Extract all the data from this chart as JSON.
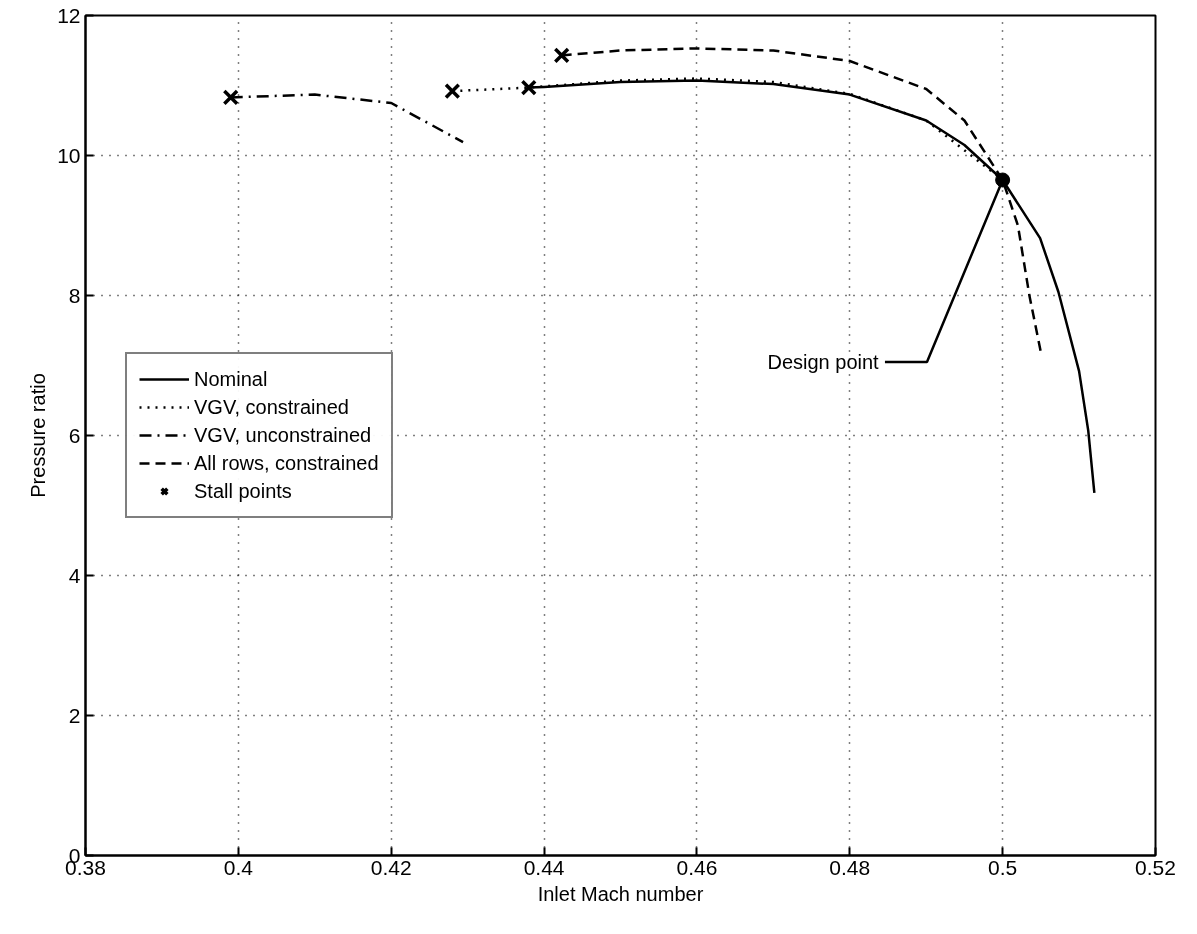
{
  "chart_data": {
    "type": "line",
    "xlabel": "Inlet Mach number",
    "ylabel": "Pressure ratio",
    "xlim": [
      0.38,
      0.52
    ],
    "ylim": [
      0,
      12
    ],
    "xticks": [
      0.38,
      0.4,
      0.42,
      0.44,
      0.46,
      0.48,
      0.5,
      0.52
    ],
    "yticks": [
      0,
      2,
      4,
      6,
      8,
      10,
      12
    ],
    "grid": true,
    "legend": "left",
    "series": [
      {
        "name": "Nominal",
        "line_style": "solid",
        "color": "#000000",
        "x": [
          0.438,
          0.44,
          0.45,
          0.46,
          0.47,
          0.48,
          0.49,
          0.495,
          0.5,
          0.5049,
          0.5073,
          0.51,
          0.5112,
          0.512
        ],
        "values": [
          10.97,
          10.98,
          11.05,
          11.07,
          11.02,
          10.87,
          10.5,
          10.15,
          9.65,
          8.82,
          8.05,
          6.92,
          6.07,
          5.18
        ]
      },
      {
        "name": "VGV, constrained",
        "line_style": "dotted",
        "color": "#000000",
        "x": [
          0.428,
          0.438,
          0.45,
          0.46,
          0.47,
          0.48,
          0.49,
          0.5
        ],
        "values": [
          10.92,
          10.97,
          11.07,
          11.1,
          11.05,
          10.88,
          10.5,
          9.65
        ]
      },
      {
        "name": "VGV, unconstrained",
        "line_style": "dashdot",
        "color": "#000000",
        "x": [
          0.399,
          0.41,
          0.42,
          0.4294
        ],
        "values": [
          10.83,
          10.87,
          10.75,
          10.19
        ]
      },
      {
        "name": "All rows, constrained",
        "line_style": "dashed",
        "color": "#000000",
        "x": [
          0.4423,
          0.45,
          0.46,
          0.47,
          0.48,
          0.49,
          0.495,
          0.5,
          0.502,
          0.5035,
          0.505
        ],
        "values": [
          11.43,
          11.5,
          11.53,
          11.5,
          11.35,
          10.95,
          10.5,
          9.65,
          9.0,
          8.0,
          7.19
        ]
      },
      {
        "name": "Stall points",
        "type": "scatter",
        "marker": "cross",
        "color": "#000000",
        "x": [
          0.399,
          0.428,
          0.438,
          0.4423
        ],
        "values": [
          10.83,
          10.92,
          10.97,
          11.43
        ]
      },
      {
        "type": "scatter",
        "marker": "circle",
        "color": "#000000",
        "x": [
          0.5
        ],
        "values": [
          9.65
        ]
      }
    ],
    "annotations": [
      {
        "text": "Design point",
        "x": 0.5,
        "y": 9.65
      }
    ]
  }
}
